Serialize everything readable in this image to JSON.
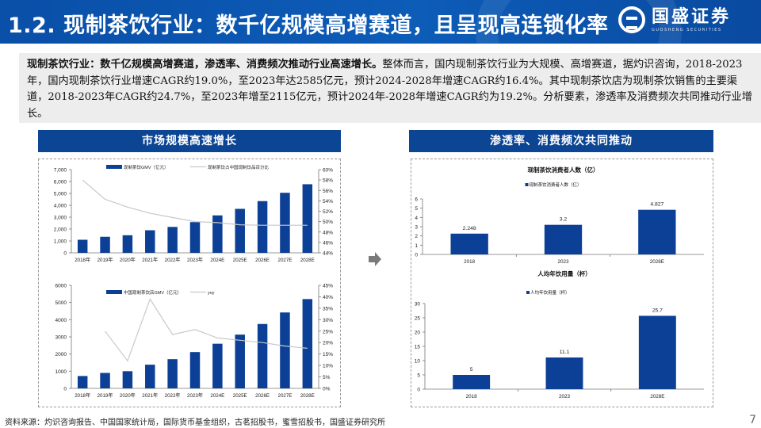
{
  "header": {
    "title": "1.2. 现制茶饮行业：数千亿规模高增赛道，且呈现高连锁化率",
    "logo_cn": "国盛证券",
    "logo_en": "GUOSHENG SECURITIES"
  },
  "summary": {
    "bold": "现制茶饮行业：数千亿规模高增赛道，渗透率、消费频次推动行业高速增长。",
    "rest": "整体而言，国内现制茶饮行业为大规模、高增赛道，据灼识咨询，2018-2023年，国内现制茶饮行业增速CAGR约19.0%，至2023年达2585亿元，预计2024-2028年增速CAGR约16.4%。其中现制茶饮店为现制茶饮销售的主要渠道，2018-2023年CAGR约24.7%，至2023年增至2115亿元，预计2024年-2028年增速CAGR约为19.2%。分析要素，渗透率及消费频次共同推动行业增长。"
  },
  "left_panel": {
    "title": "市场规模高速增长"
  },
  "right_panel": {
    "title": "渗透率、消费频次共同推动"
  },
  "footer": {
    "source": "资料来源：灼识咨询报告、中国国家统计局，国际货币基金组织，古茗招股书，蜜雪招股书，国盛证券研究所",
    "page": "7"
  },
  "colors": {
    "bar": "#0c3f96",
    "line": "#c8c8c8",
    "header": "#0a4fa8",
    "panel_title": "#0c4594"
  },
  "chart_data": [
    {
      "type": "bar+line",
      "title": "",
      "categories": [
        "2018年",
        "2019年",
        "2020年",
        "2021年",
        "2022年",
        "2023年",
        "2024E",
        "2025E",
        "2026E",
        "2027E",
        "2028E"
      ],
      "series": [
        {
          "name": "现制茶饮GMV（亿元）",
          "axis": "left",
          "type": "bar",
          "values": [
            1100,
            1350,
            1480,
            1900,
            2180,
            2585,
            3150,
            3700,
            4350,
            5050,
            5770
          ]
        },
        {
          "name": "现制茶饮占中国现制饮品百分比",
          "axis": "right",
          "type": "line",
          "values": [
            58.0,
            54.3,
            52.8,
            51.6,
            50.8,
            50.0,
            49.8,
            49.4,
            49.3,
            49.3,
            49.3
          ]
        }
      ],
      "ylim_left": [
        0,
        7000
      ],
      "yticks_left": [
        "0",
        "1,000",
        "2,000",
        "3,000",
        "4,000",
        "5,000",
        "6,000",
        "7,000"
      ],
      "ylim_right": [
        44,
        60
      ],
      "yticks_right": [
        "44%",
        "46%",
        "48%",
        "50%",
        "52%",
        "54%",
        "56%",
        "58%",
        "60%"
      ],
      "legend_position": "top"
    },
    {
      "type": "bar+line",
      "title": "",
      "categories": [
        "2018年",
        "2019年",
        "2020年",
        "2021年",
        "2022年",
        "2023年",
        "2024E",
        "2025E",
        "2026E",
        "2027E",
        "2028E"
      ],
      "series": [
        {
          "name": "中国现制茶饮店GMV（亿元）",
          "axis": "left",
          "type": "bar",
          "values": [
            720,
            900,
            1000,
            1380,
            1700,
            2115,
            2600,
            3130,
            3750,
            4420,
            5200
          ]
        },
        {
          "name": "yoy",
          "axis": "right",
          "type": "line",
          "values": [
            null,
            25.0,
            12.0,
            39.0,
            23.5,
            25.7,
            22.0,
            21.0,
            20.0,
            18.5,
            17.5
          ]
        }
      ],
      "ylim_left": [
        0,
        6000
      ],
      "yticks_left": [
        "0",
        "1000",
        "2000",
        "3000",
        "4000",
        "5000",
        "6000"
      ],
      "ylim_right": [
        0,
        45
      ],
      "yticks_right": [
        "0%",
        "5%",
        "10%",
        "15%",
        "20%",
        "25%",
        "30%",
        "35%",
        "40%",
        "45%"
      ],
      "legend_position": "top"
    },
    {
      "type": "bar",
      "title": "现制茶饮消费者人数（亿）",
      "categories": [
        "2018",
        "2023",
        "2028E"
      ],
      "values": [
        2.248,
        3.2,
        4.827
      ],
      "labels": [
        "2.248",
        "3.2",
        "4.827"
      ],
      "legend": "现制茶饮消费者人数（亿）",
      "ylim": [
        0,
        6
      ],
      "yticks": [
        "0",
        "1",
        "2",
        "3",
        "4",
        "5",
        "6"
      ]
    },
    {
      "type": "bar",
      "title": "人均年饮用量（杯）",
      "categories": [
        "2018",
        "2023",
        "2028E"
      ],
      "values": [
        5,
        11.1,
        25.7
      ],
      "labels": [
        "5",
        "11.1",
        "25.7"
      ],
      "legend": "人均年饮用量（杯）",
      "ylim": [
        0,
        30
      ],
      "yticks": [
        "0",
        "5",
        "10",
        "15",
        "20",
        "25",
        "30"
      ]
    }
  ]
}
